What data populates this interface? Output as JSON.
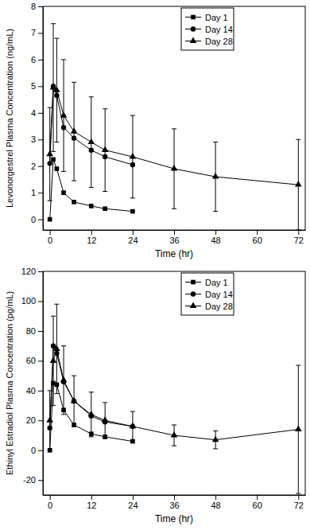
{
  "chart_data": [
    {
      "type": "line",
      "y_label": "Levonorgestrel Plasma Concentration (ng/mL)",
      "x_label": "Time (hr)",
      "xlim": [
        -2,
        74
      ],
      "xticks": [
        0,
        12,
        24,
        36,
        48,
        60,
        72
      ],
      "ylim": [
        -0.4,
        8
      ],
      "yticks": [
        0,
        1,
        2,
        3,
        4,
        5,
        6,
        7,
        8
      ],
      "legend": "top-right",
      "series": [
        {
          "name": "Day 1",
          "color": "#000000",
          "marker": "square",
          "line_style": "solid",
          "x": [
            0,
            1,
            2,
            4,
            7,
            12,
            16,
            24
          ],
          "values": [
            0,
            2.25,
            1.9,
            1.0,
            0.65,
            0.5,
            0.4,
            0.3
          ]
        },
        {
          "name": "Day 14",
          "color": "#000000",
          "marker": "circle",
          "line_style": "solid",
          "x": [
            0,
            1,
            2,
            4,
            7,
            12,
            16,
            24
          ],
          "values": [
            2.1,
            5.0,
            4.65,
            3.45,
            3.05,
            2.6,
            2.35,
            2.05
          ]
        },
        {
          "name": "Day 28",
          "color": "#000000",
          "marker": "triangle",
          "line_style": "solid",
          "x": [
            0,
            1,
            2,
            4,
            7,
            12,
            16,
            24,
            36,
            48,
            72
          ],
          "values": [
            2.45,
            4.95,
            4.85,
            3.9,
            3.3,
            2.9,
            2.6,
            2.35,
            1.9,
            1.6,
            1.3
          ],
          "errors": [
            1.75,
            2.4,
            1.95,
            2.1,
            1.85,
            1.7,
            1.55,
            1.55,
            1.5,
            1.3,
            1.7
          ]
        }
      ]
    },
    {
      "type": "line",
      "y_label": "Ethinyl Estradiol Plasma Concentration (pg/mL)",
      "x_label": "Time (hr)",
      "xlim": [
        -2,
        74
      ],
      "xticks": [
        0,
        12,
        24,
        36,
        48,
        60,
        72
      ],
      "ylim": [
        -30,
        120
      ],
      "yticks": [
        -20,
        0,
        20,
        40,
        60,
        80,
        100,
        120
      ],
      "legend": "top-right",
      "series": [
        {
          "name": "Day 1",
          "color": "#000000",
          "marker": "square",
          "line_style": "solid",
          "x": [
            0,
            1,
            2,
            4,
            7,
            12,
            16,
            24
          ],
          "values": [
            0,
            45,
            44,
            27,
            17,
            11,
            9,
            6
          ]
        },
        {
          "name": "Day 14",
          "color": "#000000",
          "marker": "circle",
          "line_style": "solid",
          "x": [
            0,
            1,
            2,
            4,
            7,
            12,
            16,
            24
          ],
          "values": [
            15,
            70,
            65,
            46,
            33,
            23,
            19,
            16
          ]
        },
        {
          "name": "Day 28",
          "color": "#000000",
          "marker": "triangle",
          "line_style": "solid",
          "x": [
            0,
            1,
            2,
            4,
            7,
            12,
            16,
            24,
            36,
            48,
            72
          ],
          "values": [
            20,
            60,
            68,
            47,
            33,
            24,
            20,
            16,
            10,
            7,
            14
          ],
          "errors": [
            20,
            30,
            30,
            23,
            17,
            15,
            12,
            10,
            7,
            6,
            43
          ]
        }
      ]
    }
  ]
}
